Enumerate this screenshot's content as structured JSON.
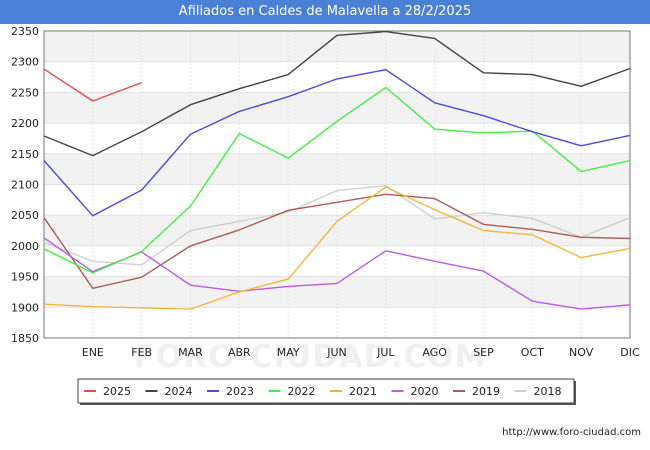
{
  "title": "Afiliados en Caldes de Malavella a 28/2/2025",
  "watermark": "FORO-CIUDAD.COM",
  "footer_url": "http://www.foro-ciudad.com",
  "chart_data": {
    "type": "line",
    "title": "Afiliados en Caldes de Malavella a 28/2/2025",
    "xlabel": "",
    "ylabel": "",
    "categories": [
      "",
      "ENE",
      "FEB",
      "MAR",
      "ABR",
      "MAY",
      "JUN",
      "JUL",
      "AGO",
      "SEP",
      "OCT",
      "NOV",
      "DIC"
    ],
    "yticks": [
      1850,
      1900,
      1950,
      2000,
      2050,
      2100,
      2150,
      2200,
      2250,
      2300,
      2350
    ],
    "ylim": [
      1850,
      2350
    ],
    "grid": true,
    "legend_position": "bottom",
    "series": [
      {
        "name": "2025",
        "color": "#e84c4c",
        "values": [
          2288,
          2236,
          2266,
          null,
          null,
          null,
          null,
          null,
          null,
          null,
          null,
          null,
          null
        ]
      },
      {
        "name": "2024",
        "color": "#444444",
        "values": [
          2179,
          2147,
          2186,
          2230,
          2256,
          2279,
          2343,
          2349,
          2338,
          2282,
          2279,
          2260,
          2289
        ]
      },
      {
        "name": "2023",
        "color": "#4a4ae0",
        "values": [
          2139,
          2049,
          2091,
          2182,
          2219,
          2243,
          2272,
          2287,
          2233,
          2212,
          2186,
          2163,
          2180
        ]
      },
      {
        "name": "2022",
        "color": "#44ee44",
        "values": [
          1995,
          1956,
          1991,
          2065,
          2183,
          2143,
          2203,
          2258,
          2190,
          2184,
          2187,
          2121,
          2139
        ]
      },
      {
        "name": "2021",
        "color": "#f5b73b",
        "values": [
          1905,
          1901,
          1899,
          1897,
          1925,
          1946,
          2040,
          2096,
          2059,
          2025,
          2018,
          1981,
          1996
        ]
      },
      {
        "name": "2020",
        "color": "#b85ce6",
        "values": [
          2013,
          1958,
          1990,
          1936,
          1926,
          1934,
          1939,
          1992,
          1975,
          1959,
          1910,
          1897,
          1904
        ]
      },
      {
        "name": "2019",
        "color": "#b05a5a",
        "values": [
          2046,
          1931,
          1949,
          2000,
          2026,
          2058,
          2071,
          2084,
          2077,
          2035,
          2027,
          2014,
          2012
        ]
      },
      {
        "name": "2018",
        "color": "#d0d0d0",
        "values": [
          2006,
          1975,
          1969,
          2025,
          2040,
          2055,
          2090,
          2098,
          2044,
          2054,
          2045,
          2014,
          2046
        ]
      }
    ]
  }
}
